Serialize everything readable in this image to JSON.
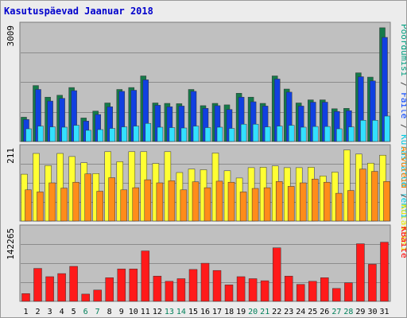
{
  "title": "Kasutuspäevad Jaanuar 2018",
  "chart_data": [
    {
      "type": "bar",
      "panel": "hits",
      "top_tick_label": "3009",
      "ymax": 3009,
      "legend": [
        {
          "text": "Pöördumisi",
          "color": "#00a080"
        },
        {
          "text": " / ",
          "color": "#444444"
        },
        {
          "text": "Faile",
          "color": "#0040ff"
        },
        {
          "text": " / ",
          "color": "#444444"
        },
        {
          "text": "Külastatud lehti",
          "color": "#00c8e0"
        }
      ],
      "series": [
        {
          "name": "Pöördumisi",
          "color": "#157a4a",
          "values": [
            630,
            1450,
            1150,
            1200,
            1400,
            610,
            790,
            1000,
            1350,
            1400,
            1700,
            1000,
            990,
            980,
            1350,
            930,
            990,
            950,
            1250,
            1150,
            990,
            1700,
            1360,
            1000,
            1080,
            1080,
            850,
            860,
            1780,
            1670,
            2950
          ]
        },
        {
          "name": "Faile",
          "color": "#1040e0",
          "values": [
            570,
            1350,
            1050,
            1120,
            1320,
            530,
            700,
            900,
            1300,
            1330,
            1600,
            940,
            900,
            920,
            1300,
            860,
            930,
            830,
            1150,
            1030,
            920,
            1620,
            1280,
            920,
            1020,
            1020,
            780,
            800,
            1680,
            1570,
            2700
          ]
        },
        {
          "name": "Külastatud lehti",
          "color": "#33e0ff",
          "values": [
            330,
            400,
            380,
            370,
            420,
            290,
            310,
            340,
            380,
            400,
            470,
            370,
            360,
            350,
            400,
            360,
            370,
            340,
            450,
            450,
            380,
            400,
            420,
            370,
            390,
            390,
            330,
            380,
            550,
            550,
            660
          ]
        }
      ]
    },
    {
      "type": "bar",
      "panel": "visits",
      "top_tick_label": "211",
      "ymax": 211,
      "legend": [
        {
          "text": "Arvuteid",
          "color": "#ff8000"
        },
        {
          "text": " / ",
          "color": "#444444"
        },
        {
          "text": "Külastusi",
          "color": "#e8e800"
        }
      ],
      "series": [
        {
          "name": "Külastusi",
          "color": "#ffff33",
          "values": [
            135,
            195,
            160,
            195,
            186,
            168,
            137,
            200,
            171,
            200,
            200,
            166,
            200,
            140,
            150,
            148,
            196,
            145,
            124,
            154,
            155,
            159,
            154,
            154,
            155,
            130,
            141,
            205,
            193,
            167,
            190
          ]
        },
        {
          "name": "Arvuteid",
          "color": "#ff8c1a",
          "values": [
            90,
            84,
            110,
            95,
            112,
            136,
            86,
            125,
            90,
            96,
            119,
            110,
            116,
            90,
            113,
            96,
            115,
            112,
            84,
            94,
            96,
            114,
            100,
            110,
            121,
            112,
            80,
            88,
            150,
            143,
            114
          ]
        }
      ]
    },
    {
      "type": "bar",
      "panel": "traffic",
      "top_tick_label": "142265",
      "ymax": 142265,
      "legend": [
        {
          "text": "KBaite",
          "color": "#ff0000"
        }
      ],
      "series": [
        {
          "name": "KBaite",
          "color": "#ff1a1a",
          "values": [
            15000,
            64000,
            48000,
            54000,
            68000,
            14000,
            22000,
            46000,
            63000,
            63000,
            98000,
            49000,
            39000,
            44000,
            62000,
            74000,
            60000,
            32000,
            48000,
            44000,
            40000,
            104000,
            49000,
            33000,
            39000,
            46000,
            25000,
            36000,
            112000,
            72000,
            115000
          ]
        }
      ]
    }
  ],
  "x_labels": [
    {
      "text": "1",
      "color": "#000000"
    },
    {
      "text": "2",
      "color": "#000000"
    },
    {
      "text": "3",
      "color": "#000000"
    },
    {
      "text": "4",
      "color": "#000000"
    },
    {
      "text": "5",
      "color": "#000000"
    },
    {
      "text": "6",
      "color": "#00805a"
    },
    {
      "text": "7",
      "color": "#00805a"
    },
    {
      "text": "8",
      "color": "#000000"
    },
    {
      "text": "9",
      "color": "#000000"
    },
    {
      "text": "10",
      "color": "#000000"
    },
    {
      "text": "11",
      "color": "#000000"
    },
    {
      "text": "12",
      "color": "#000000"
    },
    {
      "text": "13",
      "color": "#00805a"
    },
    {
      "text": "14",
      "color": "#00805a"
    },
    {
      "text": "15",
      "color": "#000000"
    },
    {
      "text": "16",
      "color": "#000000"
    },
    {
      "text": "17",
      "color": "#000000"
    },
    {
      "text": "18",
      "color": "#000000"
    },
    {
      "text": "19",
      "color": "#000000"
    },
    {
      "text": "20",
      "color": "#00805a"
    },
    {
      "text": "21",
      "color": "#00805a"
    },
    {
      "text": "22",
      "color": "#000000"
    },
    {
      "text": "23",
      "color": "#000000"
    },
    {
      "text": "24",
      "color": "#000000"
    },
    {
      "text": "25",
      "color": "#000000"
    },
    {
      "text": "26",
      "color": "#000000"
    },
    {
      "text": "27",
      "color": "#00805a"
    },
    {
      "text": "28",
      "color": "#00805a"
    },
    {
      "text": "29",
      "color": "#000000"
    },
    {
      "text": "30",
      "color": "#000000"
    },
    {
      "text": "31",
      "color": "#000000"
    }
  ]
}
